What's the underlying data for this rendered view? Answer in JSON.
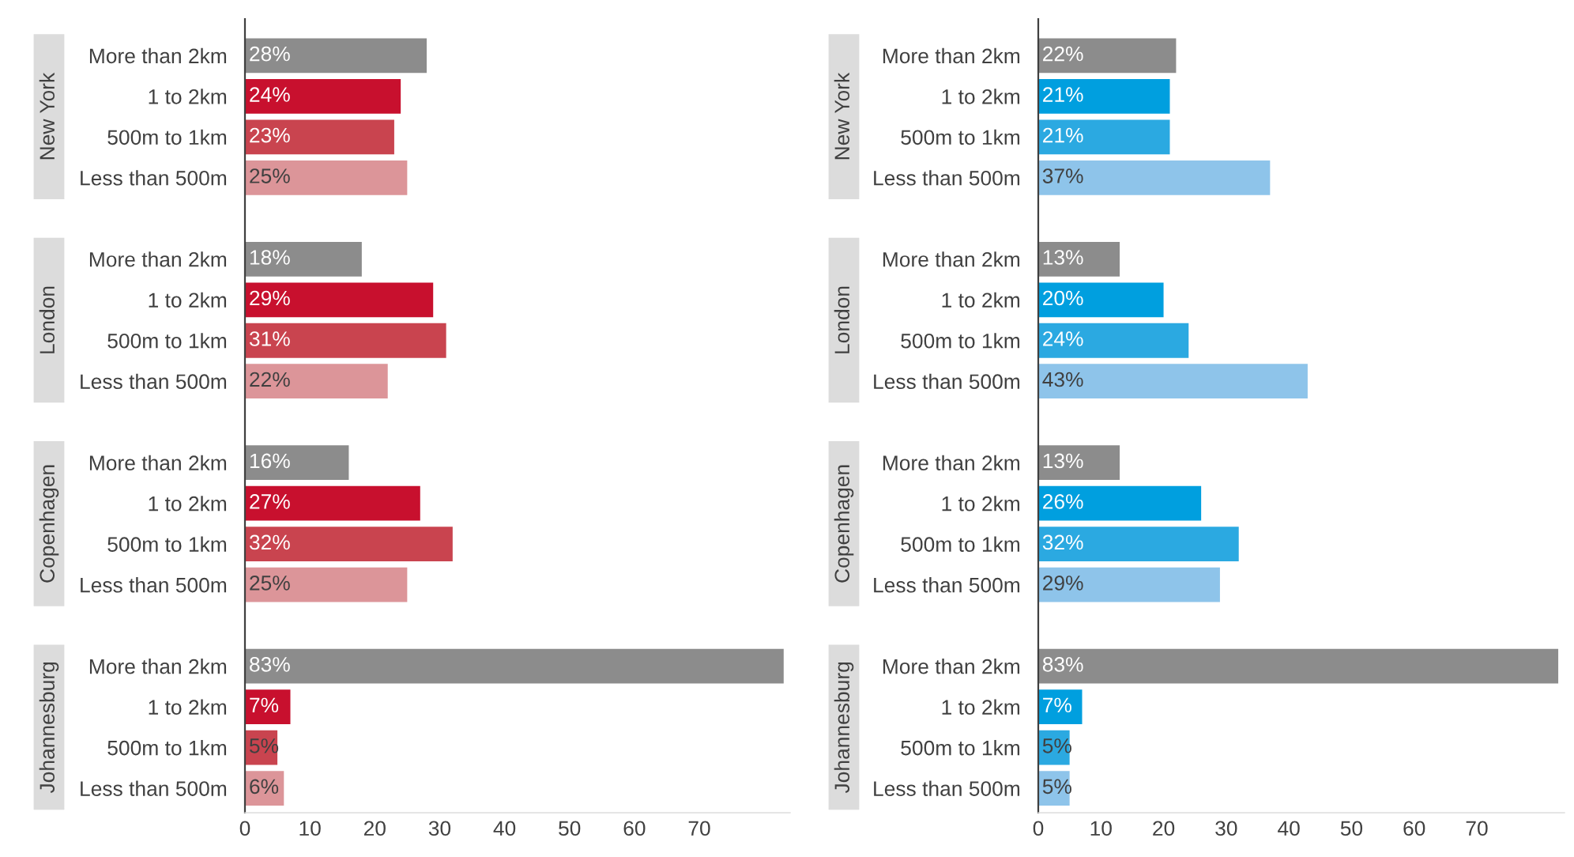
{
  "chart_data": [
    {
      "type": "bar",
      "orientation": "horizontal",
      "grid": false,
      "categories": [
        "More than 2km",
        "1 to 2km",
        "500m to 1km",
        "Less than 500m",
        null,
        "More than 2km",
        "1 to 2km",
        "500m to 1km",
        "Less than 500m",
        null,
        "More than 2km",
        "1 to 2km",
        "500m to 1km",
        "Less than 500m",
        null,
        "More than 2km",
        "1 to 2km",
        "500m to 1km",
        "Less than 500m"
      ],
      "values": [
        28,
        24,
        23,
        25,
        null,
        18,
        29,
        31,
        22,
        null,
        16,
        27,
        32,
        25,
        null,
        83,
        7,
        5,
        6
      ],
      "value_labels": [
        "28%",
        "24%",
        "23%",
        "25%",
        null,
        "18%",
        "29%",
        "31%",
        "22%",
        null,
        "16%",
        "27%",
        "32%",
        "25%",
        null,
        "83%",
        "7%",
        "5%",
        "6%"
      ],
      "colors": [
        "#8c8c8c",
        "#c8102e",
        "#c9444f",
        "#dc9599",
        null,
        "#8c8c8c",
        "#c8102e",
        "#c9444f",
        "#dc9599",
        null,
        "#8c8c8c",
        "#c8102e",
        "#c9444f",
        "#dc9599",
        null,
        "#8c8c8c",
        "#c8102e",
        "#c9444f",
        "#dc9599"
      ],
      "xlim": [
        0,
        84
      ],
      "xticks": [
        0,
        10,
        20,
        30,
        40,
        50,
        60,
        70
      ],
      "annotations": [
        "New York",
        "London",
        "Copenhagen",
        "Johannesburg"
      ]
    },
    {
      "type": "bar",
      "orientation": "horizontal",
      "grid": false,
      "categories": [
        "More than 2km",
        "1 to 2km",
        "500m to 1km",
        "Less than 500m",
        null,
        "More than 2km",
        "1 to 2km",
        "500m to 1km",
        "Less than 500m",
        null,
        "More than 2km",
        "1 to 2km",
        "500m to 1km",
        "Less than 500m",
        null,
        "More than 2km",
        "1 to 2km",
        "500m to 1km",
        "Less than 500m"
      ],
      "values": [
        22,
        21,
        21,
        37,
        null,
        13,
        20,
        24,
        43,
        null,
        13,
        26,
        32,
        29,
        null,
        83,
        7,
        5,
        5
      ],
      "value_labels": [
        "22%",
        "21%",
        "21%",
        "37%",
        null,
        "13%",
        "20%",
        "24%",
        "43%",
        null,
        "13%",
        "26%",
        "32%",
        "29%",
        null,
        "83%",
        "7%",
        "5%",
        "5%"
      ],
      "colors": [
        "#8c8c8c",
        "#009fdf",
        "#2ba9e1",
        "#8ec4ea",
        null,
        "#8c8c8c",
        "#009fdf",
        "#2ba9e1",
        "#8ec4ea",
        null,
        "#8c8c8c",
        "#009fdf",
        "#2ba9e1",
        "#8ec4ea",
        null,
        "#8c8c8c",
        "#009fdf",
        "#2ba9e1",
        "#8ec4ea"
      ],
      "xlim": [
        0,
        84
      ],
      "xticks": [
        0,
        10,
        20,
        30,
        40,
        50,
        60,
        70
      ],
      "annotations": [
        "New York",
        "London",
        "Copenhagen",
        "Johannesburg"
      ]
    }
  ]
}
